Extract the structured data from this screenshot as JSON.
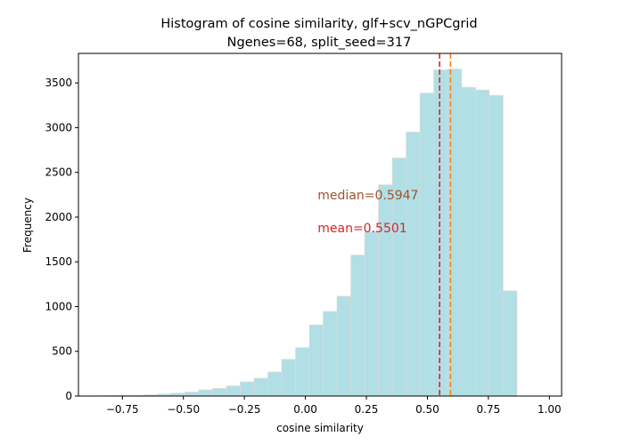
{
  "chart_data": {
    "type": "bar",
    "title_lines": [
      "Histogram of cosine similarity, glf+scv_nGPCgrid",
      "Ngenes=68, split_seed=317"
    ],
    "xlabel": "cosine similarity",
    "ylabel": "Frequency",
    "xlim": [
      -0.93,
      1.05
    ],
    "ylim": [
      0,
      3830
    ],
    "xticks": [
      -0.75,
      -0.5,
      -0.25,
      0.0,
      0.25,
      0.5,
      0.75,
      1.0
    ],
    "xtick_labels": [
      "−0.75",
      "−0.50",
      "−0.25",
      "0.00",
      "0.25",
      "0.50",
      "0.75",
      "1.00"
    ],
    "yticks": [
      0,
      500,
      1000,
      1500,
      2000,
      2500,
      3000,
      3500
    ],
    "ytick_labels": [
      "0",
      "500",
      "1000",
      "1500",
      "2000",
      "2500",
      "3000",
      "3500"
    ],
    "bin_edges": [
      -0.89,
      -0.8333,
      -0.7767,
      -0.72,
      -0.6633,
      -0.6067,
      -0.55,
      -0.4933,
      -0.4367,
      -0.38,
      -0.3233,
      -0.2667,
      -0.21,
      -0.1533,
      -0.0967,
      -0.04,
      0.0167,
      0.0733,
      0.13,
      0.1867,
      0.2433,
      0.3,
      0.3567,
      0.4133,
      0.47,
      0.5267,
      0.5833,
      0.64,
      0.6967,
      0.7533,
      0.81,
      0.8667,
      0.9233,
      0.98
    ],
    "counts": [
      2,
      3,
      5,
      8,
      13,
      22,
      32,
      44,
      68,
      85,
      112,
      158,
      198,
      268,
      410,
      540,
      795,
      945,
      1115,
      1575,
      1840,
      2360,
      2660,
      2950,
      3385,
      3645,
      3655,
      3450,
      3420,
      3360,
      1175,
      0,
      0
    ],
    "bar_color": "#b0dfe5",
    "bar_edge_color": "#d9d9d9",
    "mean": 0.5501,
    "median": 0.5947,
    "mean_color": "#d62728",
    "median_color": "#ff7f0e",
    "annotations": [
      {
        "text": "median=0.5947",
        "x": 0.05,
        "y": 2200,
        "color": "#a0522d"
      },
      {
        "text": "mean=0.5501",
        "x": 0.05,
        "y": 1830,
        "color": "#d62728"
      }
    ]
  }
}
